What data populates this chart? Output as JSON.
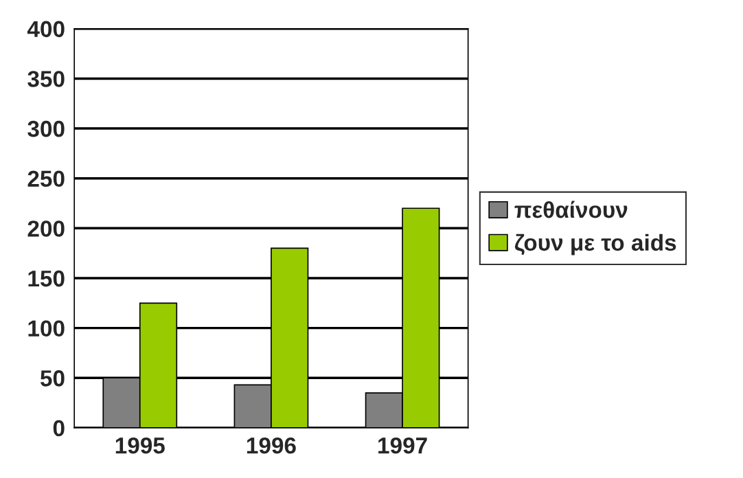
{
  "chart_data": {
    "type": "bar",
    "categories": [
      "1995",
      "1996",
      "1997"
    ],
    "series": [
      {
        "name": "πεθαίνουν",
        "color": "#808080",
        "values": [
          50,
          43,
          35
        ]
      },
      {
        "name": "ζουν με το aids",
        "color": "#99cc00",
        "values": [
          125,
          180,
          220
        ]
      }
    ],
    "ylim": [
      0,
      400
    ],
    "yticks": [
      0,
      50,
      100,
      150,
      200,
      250,
      300,
      350,
      400
    ],
    "grid": "y",
    "legend": "right"
  }
}
